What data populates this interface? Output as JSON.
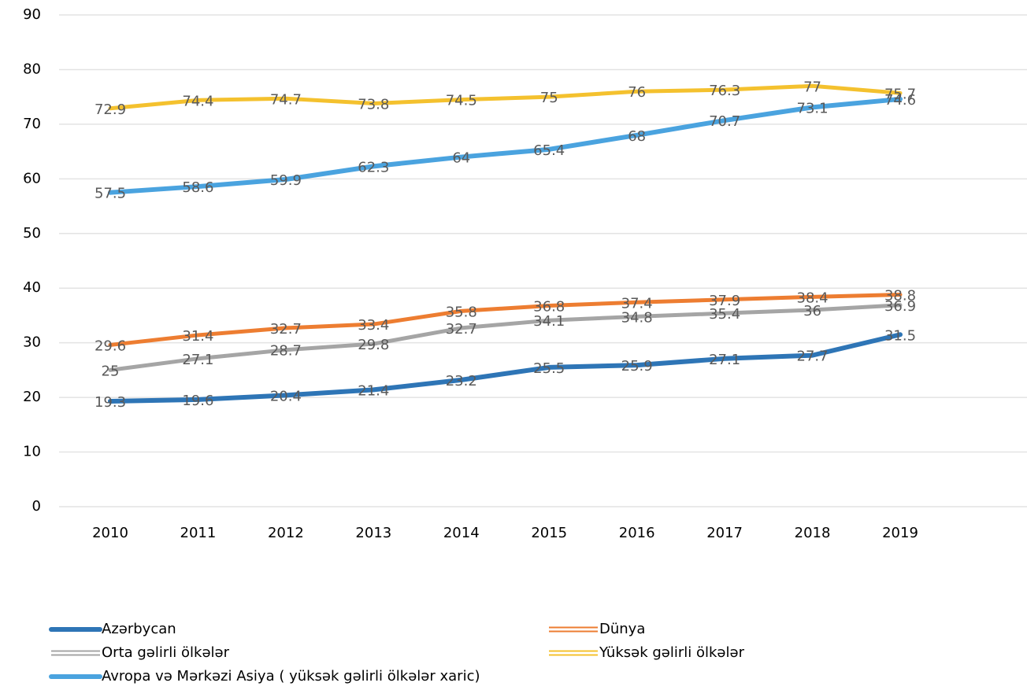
{
  "chart_data": {
    "type": "line",
    "categories": [
      "2010",
      "2011",
      "2012",
      "2013",
      "2014",
      "2015",
      "2016",
      "2017",
      "2018",
      "2019"
    ],
    "series": [
      {
        "name": "Azərbycan",
        "color": "#2e75b6",
        "values": [
          19.3,
          19.6,
          20.4,
          21.4,
          23.2,
          25.5,
          25.9,
          27.1,
          27.7,
          31.5
        ]
      },
      {
        "name": "Dünya",
        "color": "#ed7d31",
        "values": [
          29.6,
          31.4,
          32.7,
          33.4,
          35.8,
          36.8,
          37.4,
          37.9,
          38.4,
          38.8
        ]
      },
      {
        "name": "Orta gəlirli ölkələr",
        "color": "#a5a5a5",
        "values": [
          25,
          27.1,
          28.7,
          29.8,
          32.7,
          34.1,
          34.8,
          35.4,
          36,
          36.9
        ]
      },
      {
        "name": "Yüksək gəlirli ölkələr",
        "color": "#f4c12e",
        "values": [
          72.9,
          74.4,
          74.7,
          73.8,
          74.5,
          75,
          76,
          76.3,
          77,
          75.7
        ]
      },
      {
        "name": "Avropa və Mərkəzi Asiya ( yüksək gəlirli ölkələr xaric)",
        "color": "#4aa3df",
        "values": [
          57.5,
          58.6,
          59.9,
          62.3,
          64,
          65.4,
          68,
          70.7,
          73.1,
          74.6
        ]
      }
    ],
    "ylim": [
      0,
      90
    ],
    "yticks": [
      0,
      10,
      20,
      30,
      40,
      50,
      60,
      70,
      80,
      90
    ],
    "grid": true,
    "legend": "bottom",
    "data_labels": true
  }
}
